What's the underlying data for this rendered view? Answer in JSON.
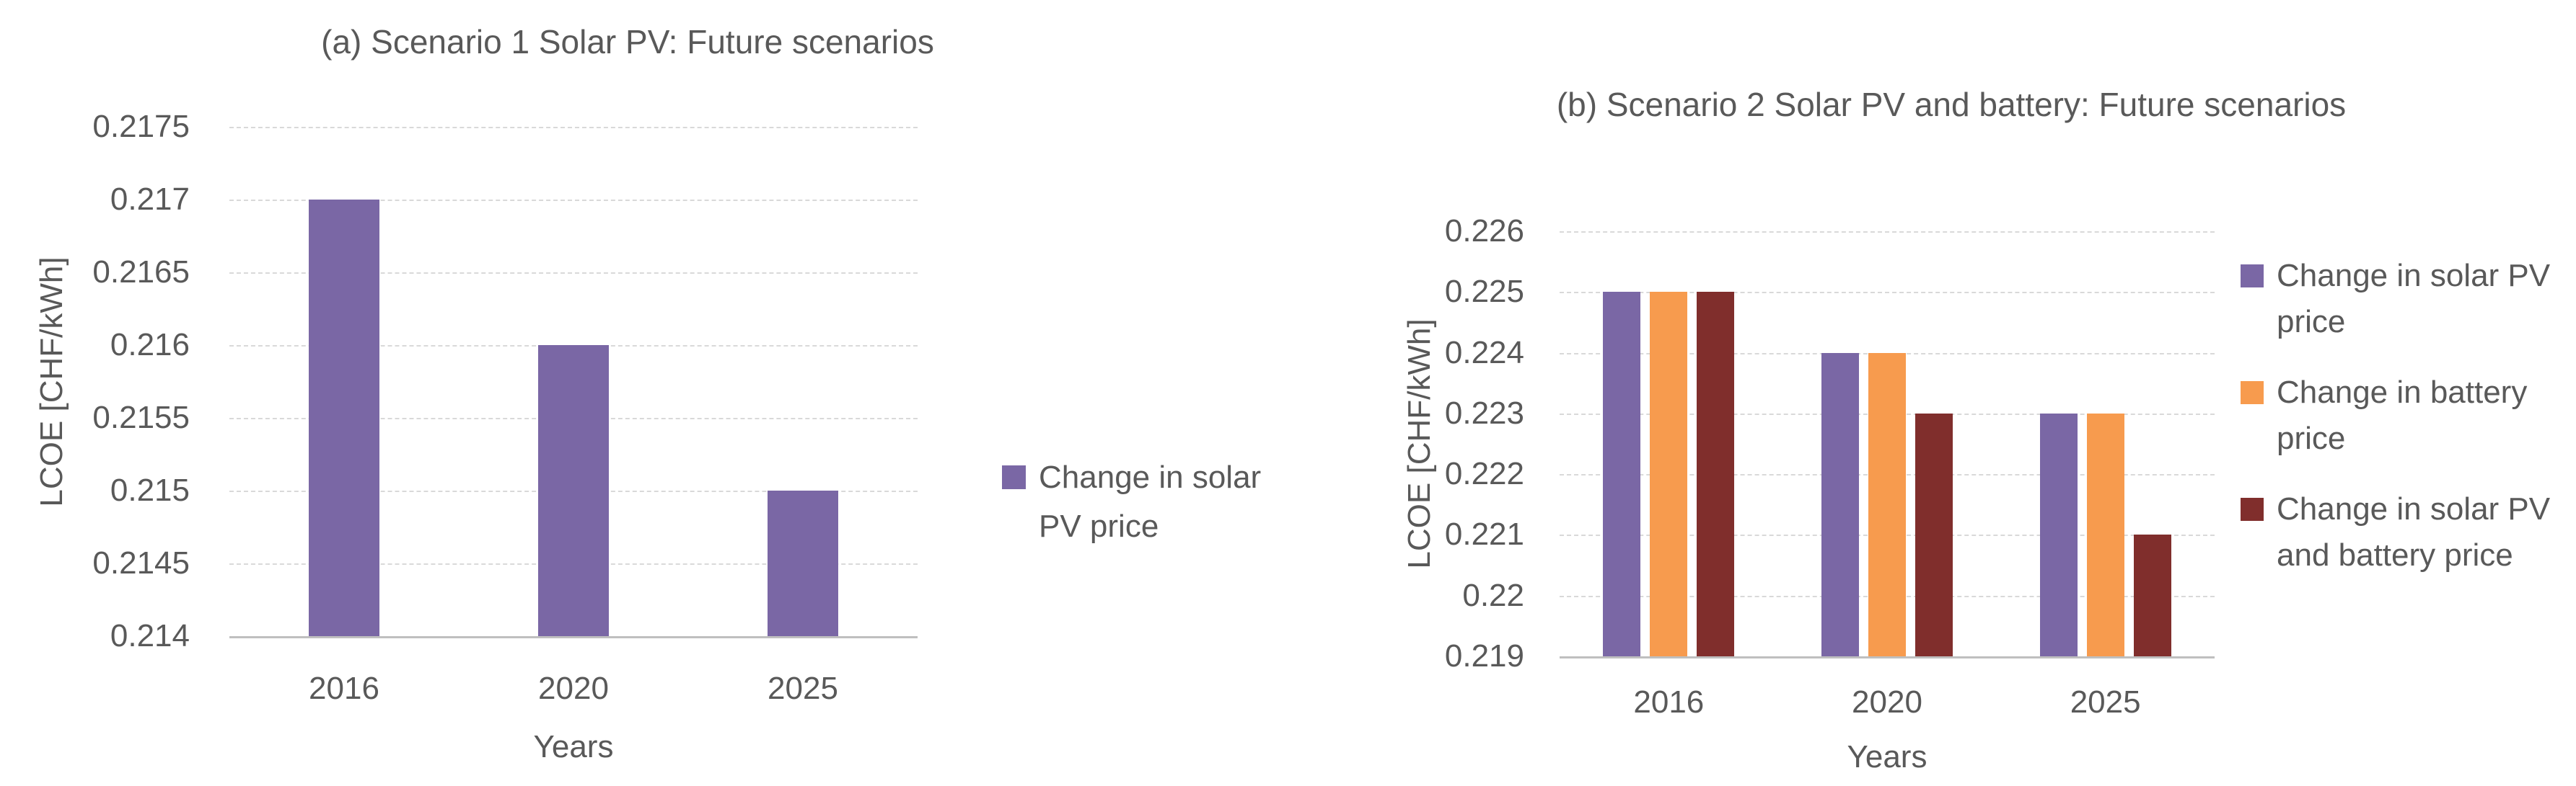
{
  "figure": {
    "background": "#ffffff",
    "text_color": "#595959",
    "gridline_color": "#d9d9d9",
    "axis_line_color": "#bfbfbf"
  },
  "chart_data": [
    {
      "type": "bar",
      "title": "(a) Scenario 1 Solar PV: Future scenarios",
      "xlabel": "Years",
      "ylabel": "LCOE [CHF/kWh]",
      "categories": [
        "2016",
        "2020",
        "2025"
      ],
      "series": [
        {
          "name": "Change in solar PV price",
          "color": "#7A67A5",
          "values": [
            0.217,
            0.216,
            0.215
          ]
        }
      ],
      "ylim": [
        0.214,
        0.2175
      ],
      "ystep": 0.0005,
      "yticks": [
        "0.2175",
        "0.217",
        "0.2165",
        "0.216",
        "0.2155",
        "0.215",
        "0.2145",
        "0.214"
      ],
      "grid": "horizontal-dashed",
      "legend_position": "right",
      "legend": [
        {
          "label": "Change in solar PV price",
          "color": "#7A67A5"
        }
      ]
    },
    {
      "type": "bar",
      "title": "(b) Scenario 2 Solar PV and battery: Future scenarios",
      "xlabel": "Years",
      "ylabel": "LCOE [CHF/kWh]",
      "categories": [
        "2016",
        "2020",
        "2025"
      ],
      "series": [
        {
          "name": "Change in solar PV price",
          "color": "#7A67A5",
          "values": [
            0.225,
            0.224,
            0.223
          ]
        },
        {
          "name": "Change in battery price",
          "color": "#F79B4E",
          "values": [
            0.225,
            0.224,
            0.223
          ]
        },
        {
          "name": "Change in solar PV and battery price",
          "color": "#802E2C",
          "values": [
            0.225,
            0.223,
            0.221
          ]
        }
      ],
      "ylim": [
        0.219,
        0.226
      ],
      "ystep": 0.001,
      "yticks": [
        "0.226",
        "0.225",
        "0.224",
        "0.223",
        "0.222",
        "0.221",
        "0.22",
        "0.219"
      ],
      "grid": "horizontal-dashed",
      "legend_position": "right",
      "legend": [
        {
          "label": "Change in solar PV price",
          "color": "#7A67A5"
        },
        {
          "label": "Change in battery price",
          "color": "#F79B4E"
        },
        {
          "label": "Change in solar PV and battery price",
          "color": "#802E2C"
        }
      ]
    }
  ]
}
